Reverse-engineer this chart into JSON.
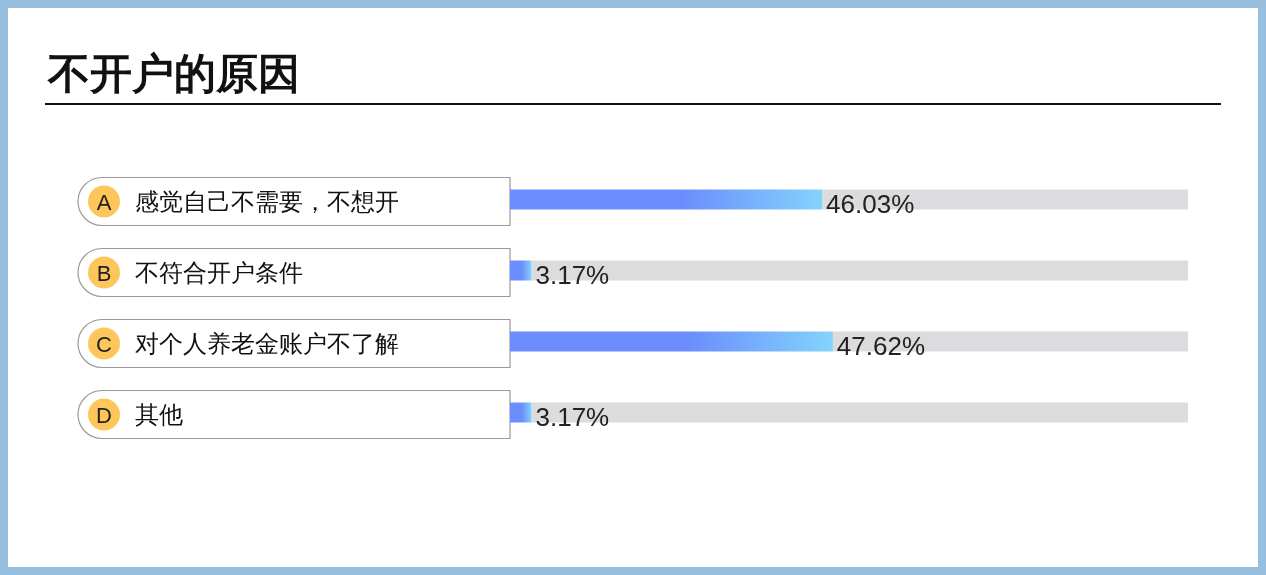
{
  "chart_data": {
    "type": "bar",
    "orientation": "horizontal",
    "title": "不开户的原因",
    "categories": [
      "感觉自己不需要，不想开",
      "不符合开户条件",
      "对个人养老金账户不了解",
      "其他"
    ],
    "values": [
      46.03,
      3.17,
      47.62,
      3.17
    ],
    "value_labels": [
      "46.03%",
      "3.17%",
      "47.62%",
      "3.17%"
    ],
    "color": "#6b8dfd",
    "xlim": [
      0,
      100
    ],
    "tick_labels": "y",
    "annotations": [
      "A",
      "B",
      "C",
      "D"
    ]
  }
}
